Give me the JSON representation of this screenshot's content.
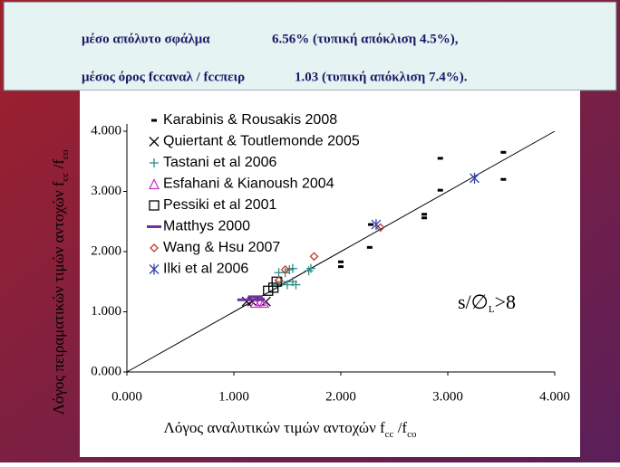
{
  "header": {
    "lines": [
      [
        "μέσο απόλυτο σφάλμα",
        "6.56% (τυπική απόκλιση 4.5%),"
      ],
      [
        "μέσος όρος fccαναλ / fccπειρ",
        "1.03 (τυπική απόκλιση 7.4%)."
      ]
    ]
  },
  "chart_data": {
    "type": "scatter",
    "x_label": [
      "Λόγος αναλυτικών τιμών αντοχών  f",
      "cc",
      " /f",
      "co"
    ],
    "y_label": [
      "Λόγος πειραματικών τιμών αντοχών  f",
      "cc",
      " /f",
      "co"
    ],
    "annotation": [
      "s/∅",
      "L",
      ">8"
    ],
    "xlim": [
      0,
      4
    ],
    "ylim": [
      0,
      4
    ],
    "xticks": [
      {
        "value": 0,
        "label": "0.000"
      },
      {
        "value": 1,
        "label": "1.000"
      },
      {
        "value": 2,
        "label": "2.000"
      },
      {
        "value": 3,
        "label": "3.000"
      },
      {
        "value": 4,
        "label": "4.000"
      }
    ],
    "yticks": [
      {
        "value": 0,
        "label": "0.000"
      },
      {
        "value": 1,
        "label": "1.000"
      },
      {
        "value": 2,
        "label": "2.000"
      },
      {
        "value": 3,
        "label": "3.000"
      },
      {
        "value": 4,
        "label": "4.000"
      }
    ],
    "diagonal": {
      "x": [
        0,
        4
      ],
      "values": [
        0,
        4
      ]
    },
    "series": [
      {
        "name": "Karabinis & Rousakis 2008",
        "color": "#000000",
        "marker": "dash",
        "x": [
          2.0,
          2.0,
          2.27,
          2.28,
          2.78,
          2.78,
          2.93,
          2.93,
          3.52,
          3.52
        ],
        "values": [
          1.83,
          1.75,
          2.07,
          2.45,
          2.62,
          2.56,
          3.55,
          3.02,
          3.65,
          3.2
        ]
      },
      {
        "name": "Quiertant & Toutlemonde 2005",
        "color": "#000000",
        "marker": "x",
        "x": [
          1.12,
          1.17,
          1.3
        ],
        "values": [
          1.17,
          1.17,
          1.17
        ]
      },
      {
        "name": "Tastani et al 2006",
        "color": "#2e8b8b",
        "marker": "plus",
        "x": [
          1.4,
          1.42,
          1.45,
          1.48,
          1.5,
          1.52,
          1.55,
          1.55,
          1.58,
          1.7,
          1.72
        ],
        "values": [
          1.45,
          1.65,
          1.5,
          1.65,
          1.45,
          1.7,
          1.72,
          1.5,
          1.45,
          1.68,
          1.72
        ]
      },
      {
        "name": "Esfahani & Kianoush 2004",
        "color": "#cc33cc",
        "marker": "triangle",
        "x": [
          1.2,
          1.25,
          1.28
        ],
        "values": [
          1.15,
          1.18,
          1.15
        ]
      },
      {
        "name": "Pessiki et al 2001",
        "color": "#000000",
        "marker": "square",
        "x": [
          1.32,
          1.37,
          1.4
        ],
        "values": [
          1.35,
          1.4,
          1.5
        ]
      },
      {
        "name": "Matthys 2000",
        "color": "#7030a0",
        "marker": "bar",
        "x": [
          1.1,
          1.2,
          1.22
        ],
        "values": [
          1.2,
          1.25,
          1.2
        ]
      },
      {
        "name": "Wang & Hsu 2007",
        "color": "#c0392b",
        "marker": "diamond",
        "x": [
          1.42,
          1.48,
          1.75,
          2.37
        ],
        "values": [
          1.52,
          1.7,
          1.92,
          2.4
        ]
      },
      {
        "name": "Ilki et al 2006",
        "color": "#3344aa",
        "marker": "asterisk",
        "x": [
          2.33,
          3.25
        ],
        "values": [
          2.45,
          3.22
        ]
      }
    ]
  }
}
